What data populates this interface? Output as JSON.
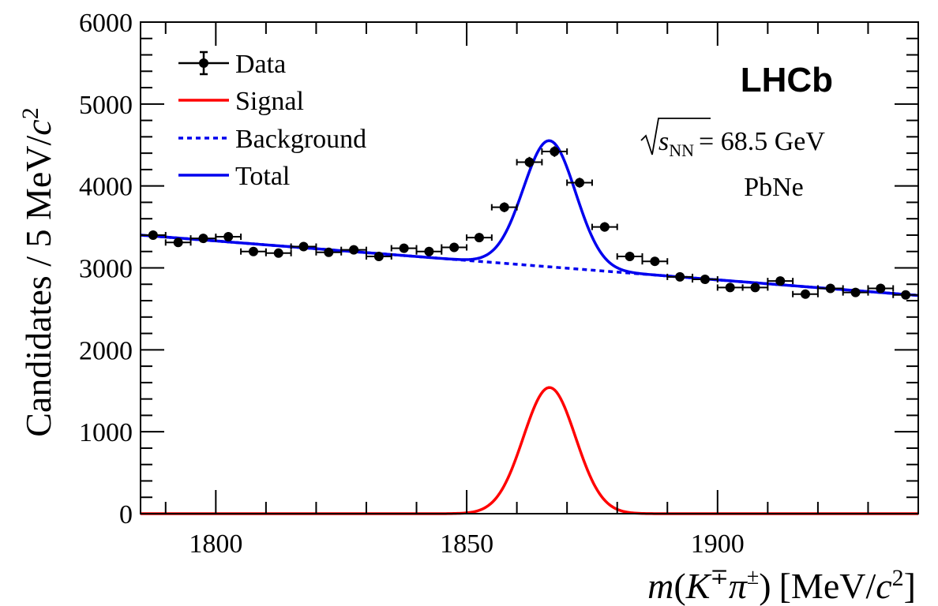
{
  "chart_data": {
    "type": "scatter",
    "title": "",
    "experiment": "LHCb",
    "energy_label": "= 68.5 GeV",
    "energy_symbol": "s",
    "energy_subscript": "NN",
    "system": "PbNe",
    "xlabel": {
      "m": "m",
      "open": "(",
      "K": "K",
      "mp": "∓",
      "pi": "π",
      "pm": "±",
      "close": ")",
      "units": "[MeV/",
      "c": "c",
      "sq": "2",
      "end": "]"
    },
    "ylabel": {
      "text": "Candidates / 5 MeV/",
      "c": "c",
      "sq": "2"
    },
    "xlim": [
      1785,
      1940
    ],
    "ylim": [
      0,
      6000
    ],
    "x_major_ticks": [
      1800,
      1850,
      1900
    ],
    "x_tick_labels": [
      "1800",
      "1850",
      "1900"
    ],
    "y_major_ticks": [
      0,
      1000,
      2000,
      3000,
      4000,
      5000,
      6000
    ],
    "y_tick_labels": [
      "0",
      "1000",
      "2000",
      "3000",
      "4000",
      "5000",
      "6000"
    ],
    "legend_placement": "top-left",
    "legend": [
      {
        "label": "Data",
        "style": "data"
      },
      {
        "label": "Signal",
        "style": "signal"
      },
      {
        "label": "Background",
        "style": "background"
      },
      {
        "label": "Total",
        "style": "total"
      }
    ],
    "colors": {
      "data": "#000000",
      "signal": "#ff0000",
      "background": "#0000ee",
      "total": "#0000ee"
    },
    "data": {
      "name": "Data",
      "bin_width": 5,
      "x": [
        1787.5,
        1792.5,
        1797.5,
        1802.5,
        1807.5,
        1812.5,
        1817.5,
        1822.5,
        1827.5,
        1832.5,
        1837.5,
        1842.5,
        1847.5,
        1852.5,
        1857.5,
        1862.5,
        1867.5,
        1872.5,
        1877.5,
        1882.5,
        1887.5,
        1892.5,
        1897.5,
        1902.5,
        1907.5,
        1912.5,
        1917.5,
        1922.5,
        1927.5,
        1932.5,
        1937.5
      ],
      "y": [
        3400,
        3310,
        3360,
        3380,
        3200,
        3180,
        3260,
        3190,
        3220,
        3140,
        3240,
        3200,
        3250,
        3370,
        3740,
        4290,
        4420,
        4040,
        3500,
        3140,
        3080,
        2890,
        2860,
        2760,
        2760,
        2840,
        2680,
        2750,
        2700,
        2750,
        2670
      ],
      "yerr": [
        55,
        55,
        55,
        55,
        55,
        55,
        55,
        55,
        55,
        55,
        55,
        55,
        55,
        55,
        60,
        65,
        65,
        60,
        58,
        55,
        55,
        52,
        52,
        52,
        52,
        52,
        52,
        52,
        52,
        52,
        52
      ]
    },
    "signal": {
      "name": "Signal",
      "amplitude": 1540,
      "mean": 1866.5,
      "sigma": 5.2
    },
    "background": {
      "name": "Background",
      "x0": 1785,
      "y0": 3400,
      "slope": -4.75
    }
  }
}
